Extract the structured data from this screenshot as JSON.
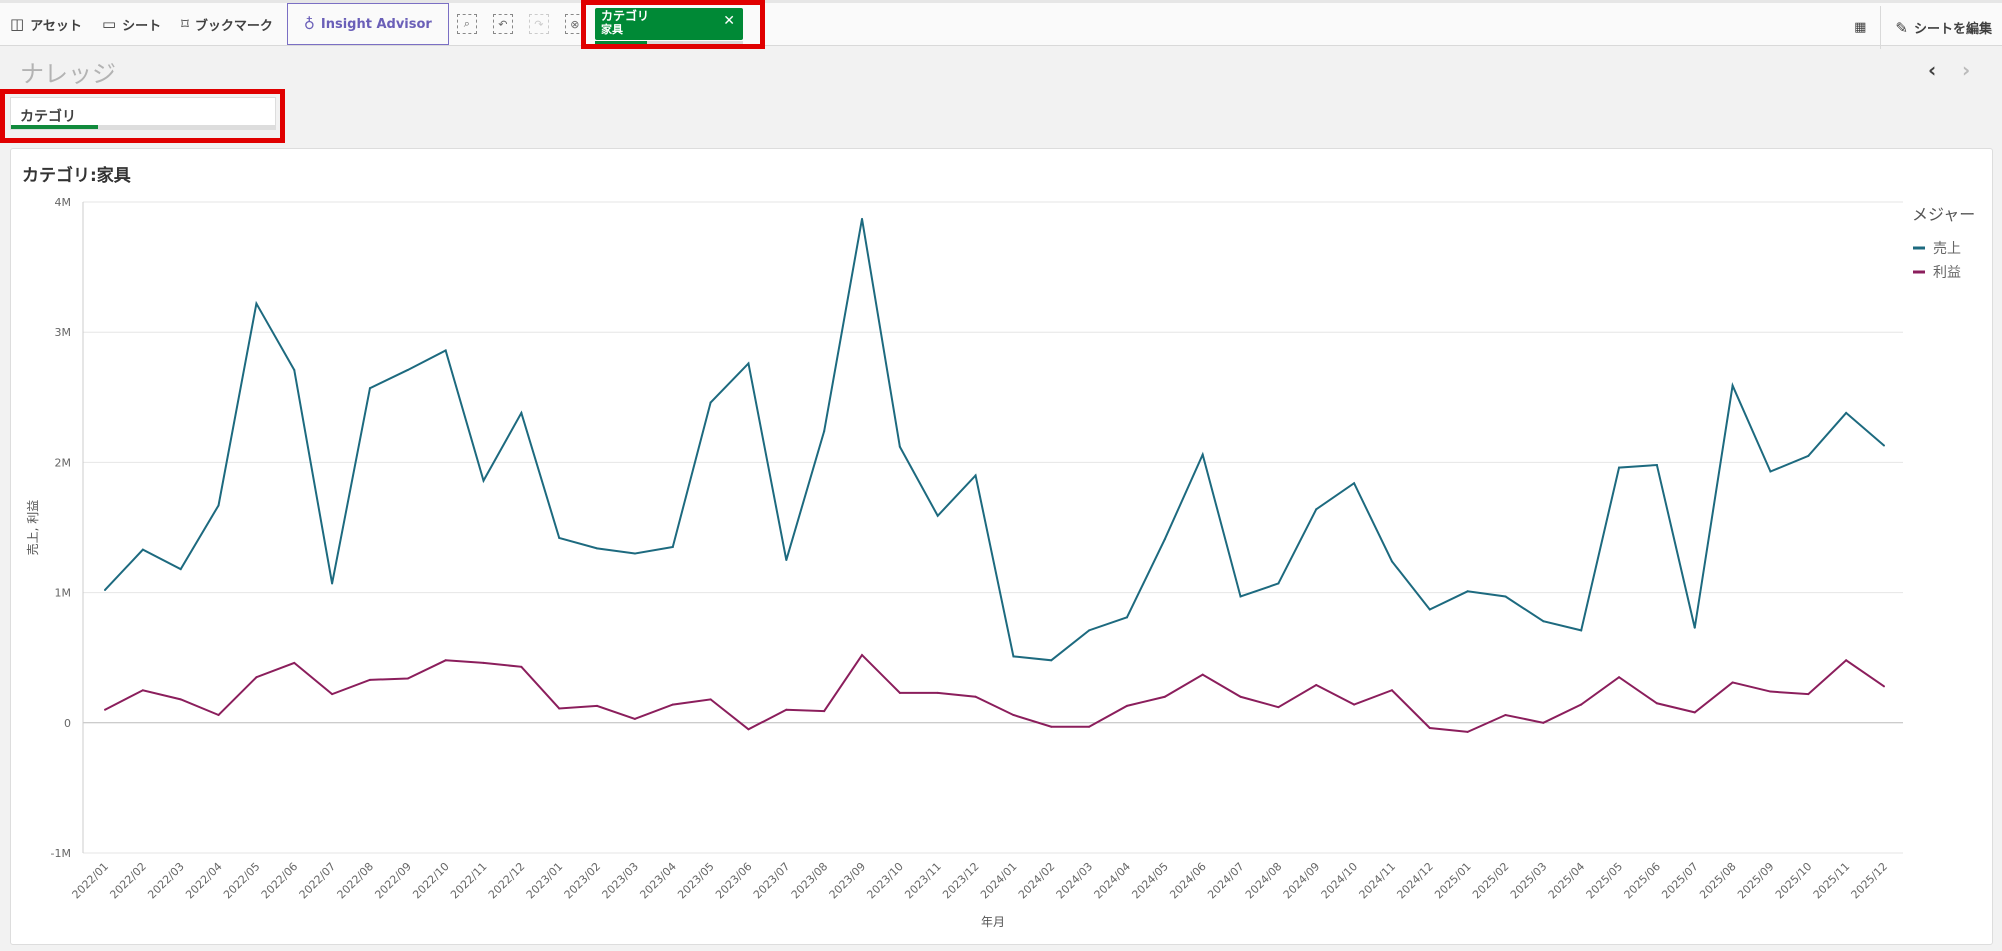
{
  "toolbar": {
    "assets": "アセット",
    "sheets": "シート",
    "bookmarks": "ブックマーク",
    "insight": "Insight Advisor",
    "edit_sheet": "シートを編集"
  },
  "selection_chip": {
    "field": "カテゴリ",
    "value": "家具"
  },
  "sheet_title": "ナレッジ",
  "filter": {
    "label": "カテゴリ"
  },
  "chart": {
    "title": "カテゴリ:家具"
  },
  "colors": {
    "sales": "#1d6a7f",
    "profit": "#8b1e5c",
    "accent": "#008936",
    "highlight": "#e00000"
  },
  "chart_data": {
    "type": "line",
    "xlabel": "年月",
    "ylabel": "売上, 利益",
    "ylim": [
      -1000000,
      4000000
    ],
    "yticks": [
      {
        "v": -1000000,
        "l": "-1M"
      },
      {
        "v": 0,
        "l": "0"
      },
      {
        "v": 1000000,
        "l": "1M"
      },
      {
        "v": 2000000,
        "l": "2M"
      },
      {
        "v": 3000000,
        "l": "3M"
      },
      {
        "v": 4000000,
        "l": "4M"
      }
    ],
    "grid": true,
    "legend": {
      "title": "メジャー",
      "placement": "right"
    },
    "categories": [
      "2022/01",
      "2022/02",
      "2022/03",
      "2022/04",
      "2022/05",
      "2022/06",
      "2022/07",
      "2022/08",
      "2022/09",
      "2022/10",
      "2022/11",
      "2022/12",
      "2023/01",
      "2023/02",
      "2023/03",
      "2023/04",
      "2023/05",
      "2023/06",
      "2023/07",
      "2023/08",
      "2023/09",
      "2023/10",
      "2023/11",
      "2023/12",
      "2024/01",
      "2024/02",
      "2024/03",
      "2024/04",
      "2024/05",
      "2024/06",
      "2024/07",
      "2024/08",
      "2024/09",
      "2024/10",
      "2024/11",
      "2024/12",
      "2025/01",
      "2025/02",
      "2025/03",
      "2025/04",
      "2025/05",
      "2025/06",
      "2025/07",
      "2025/08",
      "2025/09",
      "2025/10",
      "2025/11",
      "2025/12"
    ],
    "series": [
      {
        "name": "売上",
        "color": "#1d6a7f",
        "values": [
          1020000,
          1330000,
          1180000,
          1670000,
          3220000,
          2710000,
          1070000,
          2570000,
          2710000,
          2860000,
          1860000,
          2380000,
          1420000,
          1340000,
          1300000,
          1350000,
          2460000,
          2760000,
          1250000,
          2240000,
          3870000,
          2120000,
          1590000,
          1900000,
          510000,
          480000,
          710000,
          810000,
          1410000,
          2060000,
          970000,
          1070000,
          1640000,
          1840000,
          1240000,
          870000,
          1010000,
          970000,
          780000,
          710000,
          1960000,
          1980000,
          730000,
          2590000,
          1930000,
          2050000,
          2380000,
          2130000
        ]
      },
      {
        "name": "利益",
        "color": "#8b1e5c",
        "values": [
          100000,
          250000,
          180000,
          60000,
          350000,
          460000,
          220000,
          330000,
          340000,
          480000,
          460000,
          430000,
          110000,
          130000,
          30000,
          140000,
          180000,
          -50000,
          100000,
          90000,
          520000,
          230000,
          230000,
          200000,
          60000,
          -30000,
          -30000,
          130000,
          200000,
          370000,
          200000,
          120000,
          290000,
          140000,
          250000,
          -40000,
          -70000,
          60000,
          0,
          140000,
          350000,
          150000,
          80000,
          310000,
          240000,
          220000,
          480000,
          280000
        ]
      }
    ]
  }
}
